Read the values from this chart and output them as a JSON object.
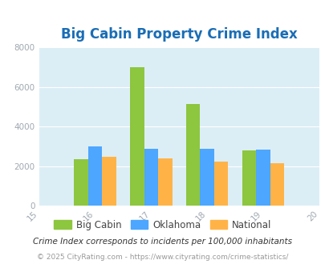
{
  "title": "Big Cabin Property Crime Index",
  "years": [
    2016,
    2017,
    2018,
    2019
  ],
  "big_cabin": [
    2350,
    7000,
    5150,
    2800
  ],
  "oklahoma": [
    3000,
    2900,
    2900,
    2850
  ],
  "national": [
    2500,
    2380,
    2250,
    2150
  ],
  "big_cabin_color": "#8dc63f",
  "oklahoma_color": "#4da6ff",
  "national_color": "#ffb347",
  "xlim": [
    2015,
    2020
  ],
  "ylim": [
    0,
    8000
  ],
  "yticks": [
    0,
    2000,
    4000,
    6000,
    8000
  ],
  "background_color": "#dceef5",
  "title_color": "#1a6db5",
  "title_fontsize": 12,
  "tick_label_color": "#a0a8b0",
  "legend_labels": [
    "Big Cabin",
    "Oklahoma",
    "National"
  ],
  "footnote1": "Crime Index corresponds to incidents per 100,000 inhabitants",
  "footnote2": "© 2025 CityRating.com - https://www.cityrating.com/crime-statistics/",
  "bar_width": 0.25
}
